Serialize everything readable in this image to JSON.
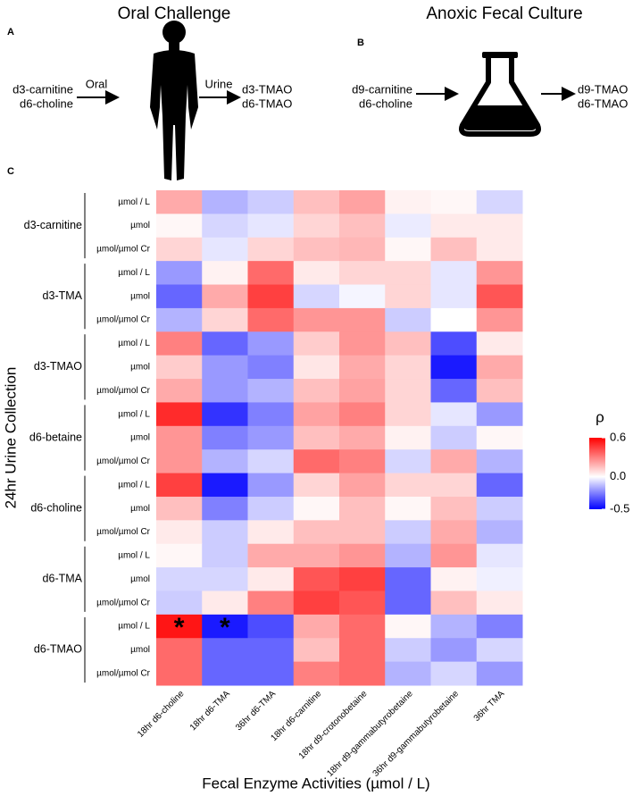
{
  "panel_a": {
    "letter": "A",
    "title": "Oral Challenge",
    "inputs": [
      {
        "text": "d3-carnitine",
        "color": "#1f9a1f"
      },
      {
        "text": "d6-choline",
        "color": "#a01818"
      }
    ],
    "arrow_in": "Oral",
    "arrow_out": "Urine",
    "outputs": [
      {
        "text": "d3-TMAO",
        "color": "#1f9a1f"
      },
      {
        "text": "d6-TMAO",
        "color": "#a01818"
      }
    ]
  },
  "panel_b": {
    "letter": "B",
    "title": "Anoxic Fecal Culture",
    "inputs": [
      {
        "text": "d9-carnitine",
        "color": "#1f9a1f"
      },
      {
        "text": "d6-choline",
        "color": "#a01818"
      }
    ],
    "outputs": [
      {
        "text": "d9-TMAO",
        "color": "#1f9a1f"
      },
      {
        "text": "d6-TMAO",
        "color": "#a01818"
      }
    ]
  },
  "chart_data": {
    "type": "heatmap",
    "panel": "C",
    "x_label": "Fecal Enzyme Activities (µmol / L)",
    "y_label": "24hr Urine Collection",
    "columns": [
      {
        "name": "18hr d6-choline",
        "color": "#a01818"
      },
      {
        "name": "18hr d6-TMA",
        "color": "#a01818"
      },
      {
        "name": "36hr d6-TMA",
        "color": "#a01818"
      },
      {
        "name": "18hr d6-carnitine",
        "color": "#a01818"
      },
      {
        "name": "18hr d9-crotonobetaine",
        "color": "#1f9a1f"
      },
      {
        "name": "18hr d9-gammabutyrobetaine",
        "color": "#1f9a1f"
      },
      {
        "name": "36hr d9-gammabutyrobetaine",
        "color": "#1f9a1f"
      },
      {
        "name": "36hr TMA",
        "color": "#000000"
      }
    ],
    "row_groups": [
      {
        "name": "d3-carnitine",
        "color": "#1f9a1f",
        "units": [
          "µmol / L",
          "µmol",
          "µmol/µmol Cr"
        ]
      },
      {
        "name": "d3-TMA",
        "color": "#1f9a1f",
        "units": [
          "µmol / L",
          "µmol",
          "µmol/µmol Cr"
        ]
      },
      {
        "name": "d3-TMAO",
        "color": "#1f9a1f",
        "units": [
          "µmol / L",
          "µmol",
          "µmol/µmol Cr"
        ]
      },
      {
        "name": "d6-betaine",
        "color": "#a01818",
        "units": [
          "µmol / L",
          "µmol",
          "µmol/µmol Cr"
        ]
      },
      {
        "name": "d6-choline",
        "color": "#a01818",
        "units": [
          "µmol / L",
          "µmol",
          "µmol/µmol Cr"
        ]
      },
      {
        "name": "d6-TMA",
        "color": "#a01818",
        "units": [
          "µmol / L",
          "µmol",
          "µmol/µmol Cr"
        ]
      },
      {
        "name": "d6-TMAO",
        "color": "#a01818",
        "units": [
          "µmol / L",
          "µmol",
          "µmol/µmol Cr"
        ]
      }
    ],
    "values": [
      [
        0.2,
        -0.15,
        -0.1,
        0.15,
        0.22,
        0.03,
        0.02,
        -0.08
      ],
      [
        0.02,
        -0.08,
        -0.05,
        0.1,
        0.15,
        -0.04,
        0.05,
        0.05
      ],
      [
        0.1,
        -0.05,
        0.1,
        0.15,
        0.17,
        0.02,
        0.15,
        0.05
      ],
      [
        -0.2,
        0.03,
        0.35,
        0.05,
        0.1,
        0.1,
        -0.05,
        0.25
      ],
      [
        -0.3,
        0.2,
        0.45,
        -0.08,
        -0.02,
        0.1,
        -0.05,
        0.4
      ],
      [
        -0.15,
        0.1,
        0.35,
        0.25,
        0.25,
        -0.1,
        0.0,
        0.25
      ],
      [
        0.3,
        -0.3,
        -0.2,
        0.12,
        0.25,
        0.15,
        -0.35,
        0.05
      ],
      [
        0.12,
        -0.2,
        -0.25,
        0.06,
        0.2,
        0.1,
        -0.45,
        0.2
      ],
      [
        0.2,
        -0.2,
        -0.15,
        0.15,
        0.22,
        0.1,
        -0.3,
        0.15
      ],
      [
        0.5,
        -0.4,
        -0.25,
        0.22,
        0.3,
        0.1,
        -0.05,
        -0.2
      ],
      [
        0.25,
        -0.25,
        -0.2,
        0.15,
        0.2,
        0.03,
        -0.1,
        0.02
      ],
      [
        0.25,
        -0.15,
        -0.08,
        0.35,
        0.3,
        -0.08,
        0.2,
        -0.15
      ],
      [
        0.45,
        -0.45,
        -0.2,
        0.1,
        0.22,
        0.1,
        0.1,
        -0.3
      ],
      [
        0.15,
        -0.25,
        -0.1,
        0.02,
        0.15,
        0.02,
        0.15,
        -0.1
      ],
      [
        0.05,
        -0.1,
        0.05,
        0.15,
        0.15,
        -0.1,
        0.2,
        -0.15
      ],
      [
        0.02,
        -0.1,
        0.2,
        0.2,
        0.25,
        -0.15,
        0.25,
        -0.05
      ],
      [
        -0.08,
        -0.08,
        0.05,
        0.4,
        0.45,
        -0.3,
        0.03,
        -0.03
      ],
      [
        -0.1,
        0.05,
        0.3,
        0.45,
        0.4,
        -0.3,
        0.15,
        0.05
      ],
      [
        0.55,
        -0.45,
        -0.35,
        0.2,
        0.35,
        0.02,
        -0.15,
        -0.25
      ],
      [
        0.35,
        -0.3,
        -0.3,
        0.15,
        0.35,
        -0.1,
        -0.2,
        -0.08
      ],
      [
        0.35,
        -0.3,
        -0.3,
        0.3,
        0.35,
        -0.15,
        -0.08,
        -0.2
      ]
    ],
    "markers": [
      [
        null,
        null,
        null,
        null,
        null,
        null,
        null,
        null
      ],
      [
        null,
        null,
        null,
        null,
        null,
        null,
        null,
        null
      ],
      [
        null,
        null,
        null,
        null,
        null,
        null,
        null,
        null
      ],
      [
        null,
        null,
        null,
        null,
        null,
        null,
        null,
        null
      ],
      [
        null,
        null,
        null,
        null,
        null,
        null,
        null,
        null
      ],
      [
        null,
        null,
        null,
        null,
        null,
        null,
        null,
        null
      ],
      [
        null,
        null,
        null,
        null,
        null,
        null,
        null,
        null
      ],
      [
        null,
        null,
        null,
        null,
        null,
        null,
        null,
        null
      ],
      [
        null,
        null,
        null,
        null,
        null,
        null,
        null,
        null
      ],
      [
        null,
        null,
        null,
        null,
        null,
        null,
        null,
        null
      ],
      [
        null,
        null,
        null,
        null,
        null,
        null,
        null,
        null
      ],
      [
        null,
        null,
        null,
        null,
        null,
        null,
        null,
        null
      ],
      [
        null,
        null,
        null,
        null,
        null,
        null,
        null,
        null
      ],
      [
        null,
        null,
        null,
        null,
        null,
        null,
        null,
        null
      ],
      [
        null,
        null,
        null,
        null,
        null,
        null,
        null,
        null
      ],
      [
        null,
        null,
        null,
        null,
        null,
        null,
        null,
        null
      ],
      [
        null,
        null,
        null,
        null,
        null,
        null,
        null,
        null
      ],
      [
        null,
        null,
        null,
        null,
        null,
        null,
        null,
        null
      ],
      [
        "*",
        "*",
        null,
        null,
        null,
        null,
        null,
        null
      ],
      [
        null,
        null,
        null,
        null,
        null,
        null,
        null,
        null
      ],
      [
        null,
        null,
        null,
        null,
        null,
        null,
        null,
        null
      ]
    ],
    "colorbar": {
      "title": "ρ",
      "lim": [
        -0.5,
        0.6
      ],
      "ticks": [
        0.6,
        {
          "value": 0,
          "label": "0.0"
        },
        -0.5
      ],
      "colors": [
        "#0000ff",
        "#ffffff",
        "#ff0000"
      ]
    }
  }
}
